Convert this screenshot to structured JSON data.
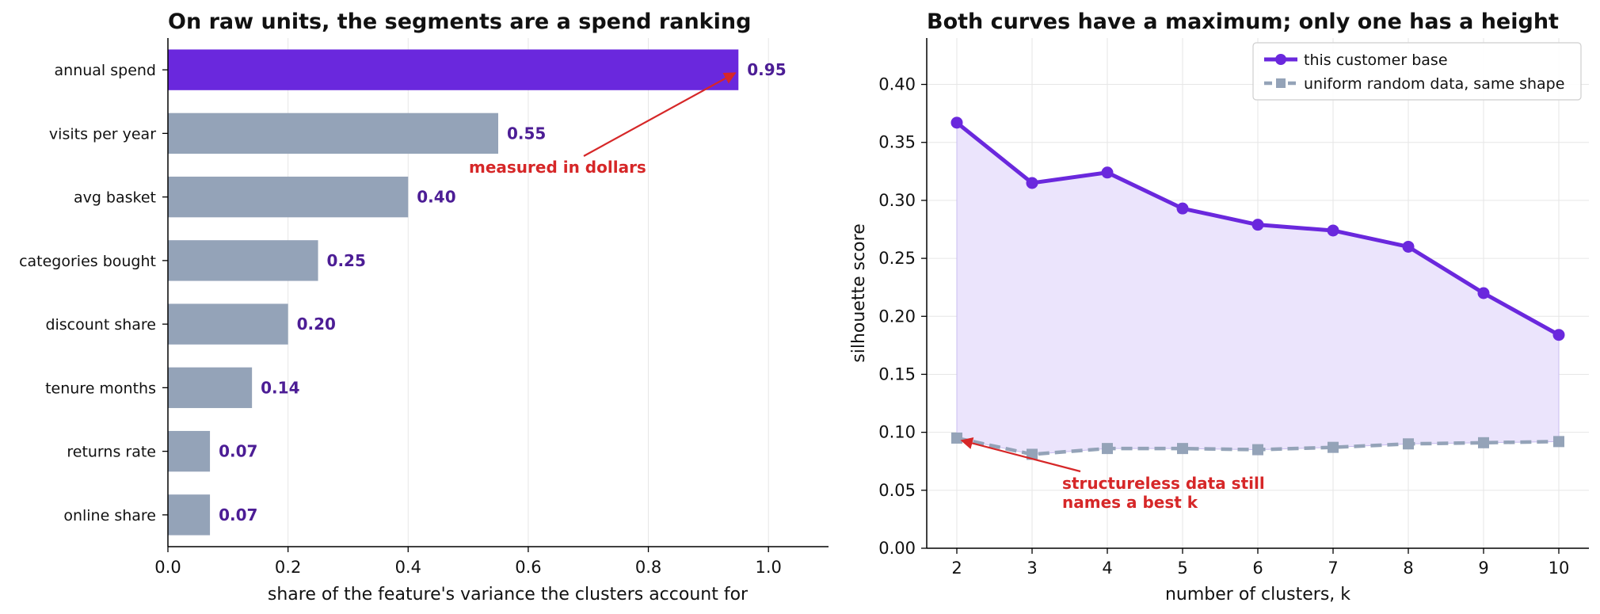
{
  "colors": {
    "accent": "#6a28dd",
    "muted": "#94a3b8",
    "value_label": "#4c1d95",
    "annotation": "#d62728",
    "fill": "#ebe4fc",
    "grid": "#e6e6e6"
  },
  "chart_data": [
    {
      "type": "bar",
      "orientation": "horizontal",
      "title": "On raw units, the segments are a spend ranking",
      "xlabel": "share of the feature's variance the clusters account for",
      "ylabel": "",
      "categories": [
        "annual spend",
        "visits per year",
        "avg basket",
        "categories bought",
        "discount share",
        "tenure months",
        "returns rate",
        "online share"
      ],
      "values": [
        0.95,
        0.55,
        0.4,
        0.25,
        0.2,
        0.14,
        0.07,
        0.07
      ],
      "value_labels": [
        "0.95",
        "0.55",
        "0.40",
        "0.25",
        "0.20",
        "0.14",
        "0.07",
        "0.07"
      ],
      "highlight_index": 0,
      "xlim": [
        0,
        1.1
      ],
      "xticks": [
        0.0,
        0.2,
        0.4,
        0.6,
        0.8,
        1.0
      ],
      "xtick_labels": [
        "0.0",
        "0.2",
        "0.4",
        "0.6",
        "0.8",
        "1.0"
      ],
      "grid": "vertical",
      "annotation": {
        "text": "measured in dollars",
        "target_value": 0.95,
        "target_category": "annual spend"
      }
    },
    {
      "type": "line",
      "title": "Both curves have a maximum; only one has a height",
      "xlabel": "number of clusters, k",
      "ylabel": "silhouette score",
      "x": [
        2,
        3,
        4,
        5,
        6,
        7,
        8,
        9,
        10
      ],
      "series": [
        {
          "name": "this customer base",
          "values": [
            0.367,
            0.315,
            0.324,
            0.293,
            0.279,
            0.274,
            0.26,
            0.22,
            0.184
          ],
          "marker": "circle",
          "style": "solid"
        },
        {
          "name": "uniform random data, same shape",
          "values": [
            0.095,
            0.081,
            0.086,
            0.086,
            0.085,
            0.087,
            0.09,
            0.091,
            0.092
          ],
          "marker": "square",
          "style": "dashed"
        }
      ],
      "xlim": [
        1.6,
        10.4
      ],
      "ylim": [
        0,
        0.44
      ],
      "yticks": [
        0.0,
        0.05,
        0.1,
        0.15,
        0.2,
        0.25,
        0.3,
        0.35,
        0.4
      ],
      "ytick_labels": [
        "0.00",
        "0.05",
        "0.10",
        "0.15",
        "0.20",
        "0.25",
        "0.30",
        "0.35",
        "0.40"
      ],
      "xtick_labels": [
        "2",
        "3",
        "4",
        "5",
        "6",
        "7",
        "8",
        "9",
        "10"
      ],
      "grid": true,
      "legend": "top-right",
      "annotation": {
        "lines": [
          "structureless data still",
          "names a best k"
        ],
        "target_x": 2,
        "target_y": 0.095
      }
    }
  ]
}
